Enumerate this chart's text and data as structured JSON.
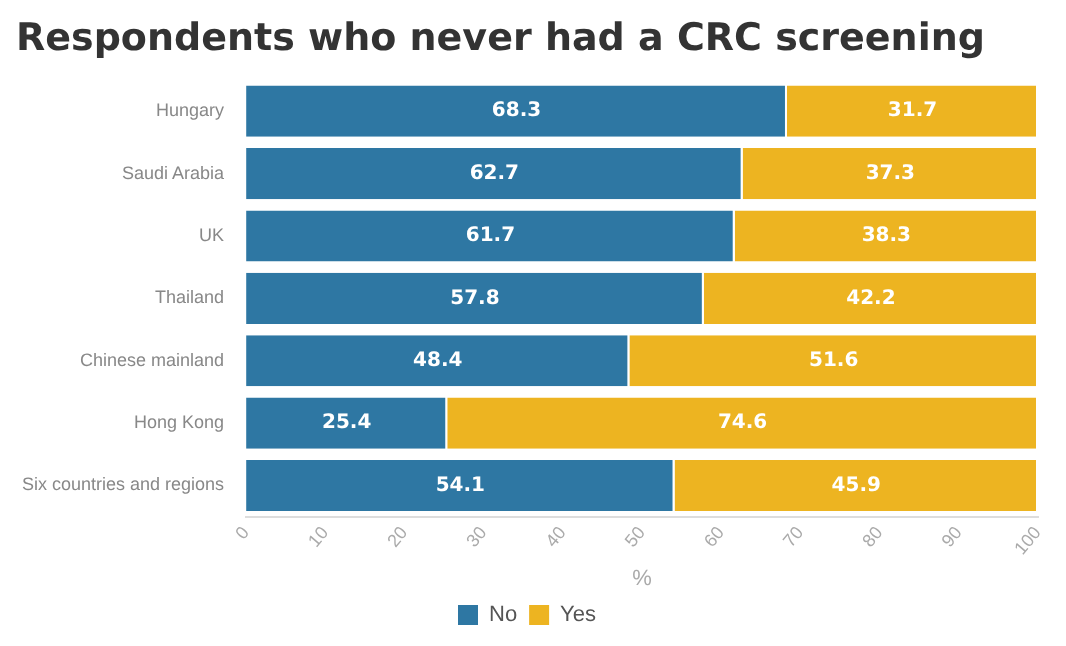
{
  "chart_data": {
    "type": "bar",
    "orientation": "horizontal",
    "stacked": true,
    "title": "Respondents who never had a CRC screening",
    "xlabel": "%",
    "categories": [
      "Hungary",
      "Saudi Arabia",
      "UK",
      "Thailand",
      "Chinese mainland",
      "Hong Kong",
      "Six countries and regions"
    ],
    "series": [
      {
        "name": "No",
        "color": "#2e77a3",
        "values": [
          68.3,
          62.7,
          61.7,
          57.8,
          48.4,
          25.4,
          54.1
        ]
      },
      {
        "name": "Yes",
        "color": "#edb421",
        "values": [
          31.7,
          37.3,
          38.3,
          42.2,
          51.6,
          74.6,
          45.9
        ]
      }
    ],
    "xlim": [
      0,
      100
    ],
    "xticks": [
      0,
      10,
      20,
      30,
      40,
      50,
      60,
      70,
      80,
      90,
      100
    ],
    "data_labels": true,
    "legend": "bottom",
    "grid": false
  }
}
